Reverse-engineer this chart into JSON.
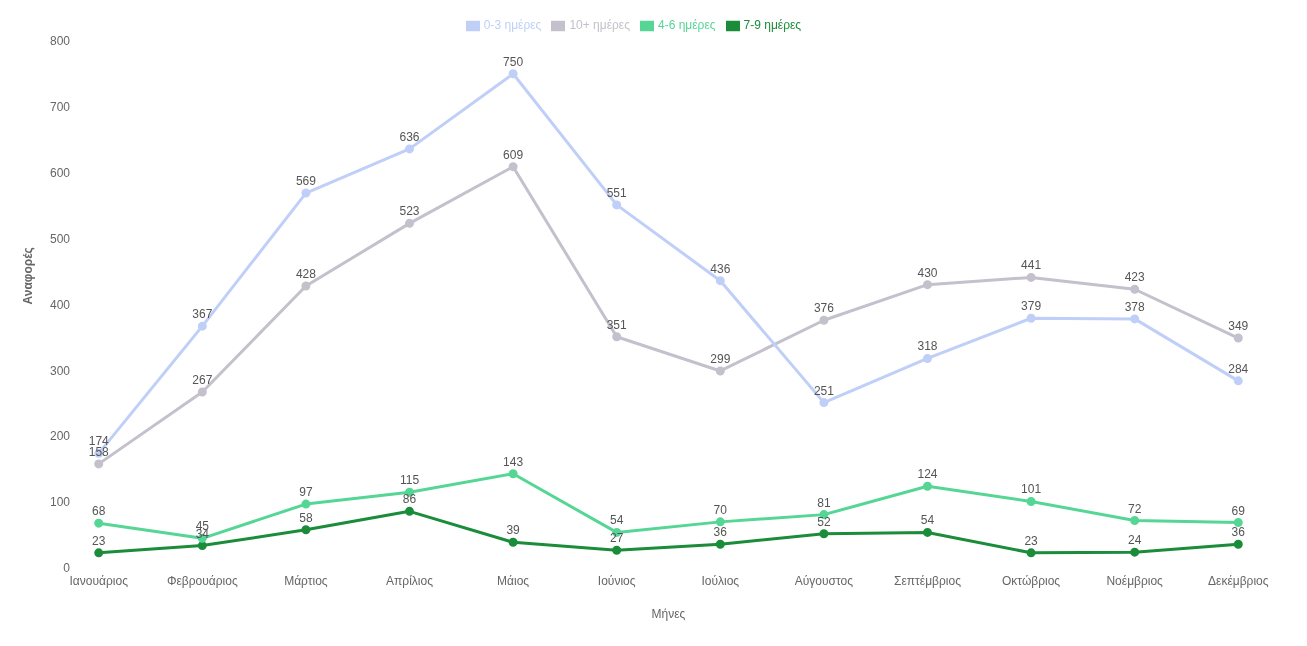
{
  "chart_data": {
    "type": "line",
    "xlabel": "Μήνες",
    "ylabel": "Αναφορές",
    "categories": [
      "Ιανουάριος",
      "Φεβρουάριος",
      "Μάρτιος",
      "Απρίλιος",
      "Μάιος",
      "Ιούνιος",
      "Ιούλιος",
      "Αύγουστος",
      "Σεπτέμβριος",
      "Οκτώβριος",
      "Νοέμβριος",
      "Δεκέμβριος"
    ],
    "series": [
      {
        "name": "10+ ημέρες",
        "color": "#c4c0cc",
        "values": [
          158,
          267,
          428,
          523,
          609,
          351,
          299,
          376,
          430,
          441,
          423,
          349
        ]
      },
      {
        "name": "7-9 ημέρες",
        "color": "#1a8c3a",
        "values": [
          23,
          34,
          58,
          86,
          39,
          27,
          36,
          52,
          54,
          23,
          24,
          36
        ]
      },
      {
        "name": "0-3 ημέρες",
        "color": "#bfcff8",
        "values": [
          174,
          367,
          569,
          636,
          750,
          551,
          436,
          251,
          318,
          379,
          378,
          284
        ]
      },
      {
        "name": "4-6 ημέρες",
        "color": "#55d695",
        "values": [
          68,
          45,
          97,
          115,
          143,
          54,
          70,
          81,
          124,
          101,
          72,
          69
        ]
      }
    ],
    "ylim": [
      0,
      800
    ],
    "yticks": [
      0,
      100,
      200,
      300,
      400,
      500,
      600,
      700,
      800
    ],
    "grid": false,
    "legend": "top",
    "marker": "circle",
    "line_style": "solid",
    "data_labels": true
  }
}
